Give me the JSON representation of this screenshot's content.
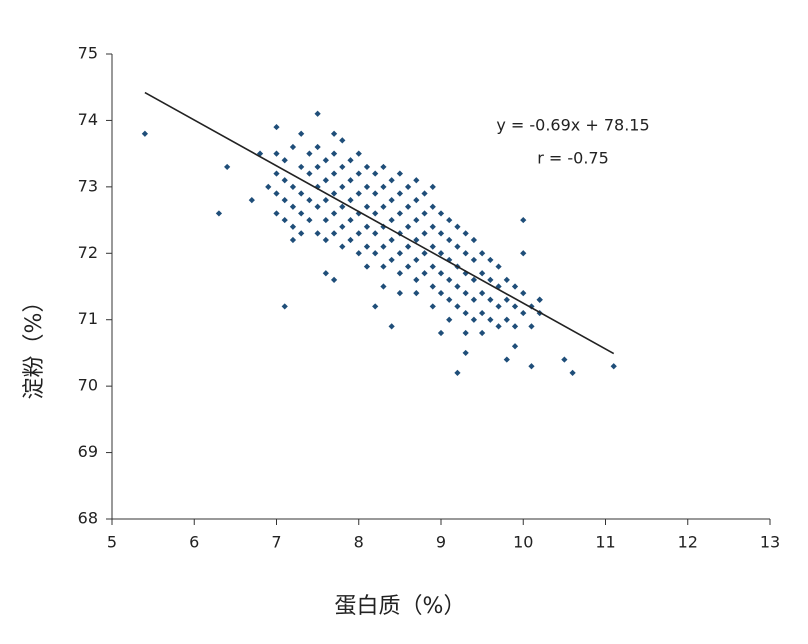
{
  "chart_data": {
    "type": "scatter",
    "x_label": "蛋白质（%）",
    "y_label": "淀粉（%）",
    "annotations": [
      "y = -0.69x + 78.15",
      "r = -0.75"
    ],
    "color": "#1f4e79",
    "line_color": "#222222",
    "xlim": [
      5,
      13
    ],
    "xticks": [
      5,
      6,
      7,
      8,
      9,
      10,
      11,
      12,
      13
    ],
    "ylim": [
      68,
      75
    ],
    "yticks": [
      68,
      69,
      70,
      71,
      72,
      73,
      74,
      75
    ],
    "grid": false,
    "trend_line": {
      "x": [
        5.4,
        11.1
      ],
      "y": [
        74.42,
        70.49
      ]
    },
    "x": [
      5.4,
      6.3,
      6.4,
      7.1,
      7.5,
      10.0,
      9.2,
      10.1,
      10.5,
      10.6,
      11.1,
      9.8,
      9.9,
      9.3,
      10.2,
      8.4,
      8.2,
      7.7,
      7.6,
      6.8,
      6.7,
      6.9,
      7.0,
      7.2,
      7.3,
      7.7,
      10.0,
      7.0,
      7.0,
      7.0,
      7.0,
      7.1,
      7.1,
      7.1,
      7.1,
      7.2,
      7.2,
      7.2,
      7.2,
      7.3,
      7.3,
      7.3,
      7.3,
      7.4,
      7.4,
      7.4,
      7.4,
      7.5,
      7.5,
      7.5,
      7.5,
      7.5,
      7.6,
      7.6,
      7.6,
      7.6,
      7.6,
      7.7,
      7.7,
      7.7,
      7.7,
      7.7,
      7.8,
      7.8,
      7.8,
      7.8,
      7.8,
      7.8,
      7.9,
      7.9,
      7.9,
      7.9,
      7.9,
      8.0,
      8.0,
      8.0,
      8.0,
      8.0,
      8.0,
      8.1,
      8.1,
      8.1,
      8.1,
      8.1,
      8.1,
      8.2,
      8.2,
      8.2,
      8.2,
      8.2,
      8.3,
      8.3,
      8.3,
      8.3,
      8.3,
      8.3,
      8.3,
      8.4,
      8.4,
      8.4,
      8.4,
      8.4,
      8.5,
      8.5,
      8.5,
      8.5,
      8.5,
      8.5,
      8.5,
      8.6,
      8.6,
      8.6,
      8.6,
      8.6,
      8.7,
      8.7,
      8.7,
      8.7,
      8.7,
      8.7,
      8.7,
      8.8,
      8.8,
      8.8,
      8.8,
      8.8,
      8.9,
      8.9,
      8.9,
      8.9,
      8.9,
      8.9,
      8.9,
      9.0,
      9.0,
      9.0,
      9.0,
      9.0,
      9.0,
      9.1,
      9.1,
      9.1,
      9.1,
      9.1,
      9.1,
      9.2,
      9.2,
      9.2,
      9.2,
      9.2,
      9.3,
      9.3,
      9.3,
      9.3,
      9.3,
      9.3,
      9.4,
      9.4,
      9.4,
      9.4,
      9.4,
      9.5,
      9.5,
      9.5,
      9.5,
      9.5,
      9.6,
      9.6,
      9.6,
      9.6,
      9.7,
      9.7,
      9.7,
      9.7,
      9.8,
      9.8,
      9.8,
      9.9,
      9.9,
      9.9,
      10.0,
      10.0,
      10.1,
      10.1,
      10.2,
      10.2
    ],
    "y": [
      73.8,
      72.6,
      73.3,
      71.2,
      74.1,
      72.5,
      70.2,
      70.3,
      70.4,
      70.2,
      70.3,
      70.4,
      70.6,
      70.5,
      71.3,
      70.9,
      71.2,
      71.6,
      71.7,
      73.5,
      72.8,
      73.0,
      73.9,
      72.2,
      73.8,
      73.8,
      72.0,
      73.5,
      73.2,
      72.9,
      72.6,
      73.4,
      73.1,
      72.8,
      72.5,
      73.6,
      73.0,
      72.7,
      72.4,
      73.3,
      72.9,
      72.6,
      72.3,
      73.5,
      73.2,
      72.8,
      72.5,
      73.6,
      73.3,
      73.0,
      72.7,
      72.3,
      73.4,
      73.1,
      72.8,
      72.5,
      72.2,
      73.5,
      73.2,
      72.9,
      72.6,
      72.3,
      73.7,
      73.3,
      73.0,
      72.7,
      72.4,
      72.1,
      73.4,
      73.1,
      72.8,
      72.5,
      72.2,
      73.5,
      73.2,
      72.9,
      72.6,
      72.3,
      72.0,
      73.3,
      73.0,
      72.7,
      72.4,
      72.1,
      71.8,
      73.2,
      72.9,
      72.6,
      72.3,
      72.0,
      73.3,
      73.0,
      72.7,
      72.4,
      72.1,
      71.8,
      71.5,
      73.1,
      72.8,
      72.5,
      72.2,
      71.9,
      73.2,
      72.9,
      72.6,
      72.3,
      72.0,
      71.7,
      71.4,
      73.0,
      72.7,
      72.4,
      72.1,
      71.8,
      73.1,
      72.8,
      72.5,
      72.2,
      71.9,
      71.6,
      71.4,
      72.9,
      72.6,
      72.3,
      72.0,
      71.7,
      73.0,
      72.7,
      72.4,
      72.1,
      71.8,
      71.5,
      71.2,
      72.6,
      72.3,
      72.0,
      71.7,
      71.4,
      70.8,
      72.5,
      72.2,
      71.9,
      71.6,
      71.3,
      71.0,
      72.4,
      72.1,
      71.8,
      71.5,
      71.2,
      72.3,
      72.0,
      71.7,
      71.4,
      71.1,
      70.8,
      72.2,
      71.9,
      71.6,
      71.3,
      71.0,
      72.0,
      71.7,
      71.4,
      71.1,
      70.8,
      71.9,
      71.6,
      71.3,
      71.0,
      71.8,
      71.5,
      71.2,
      70.9,
      71.6,
      71.3,
      71.0,
      71.5,
      71.2,
      70.9,
      71.4,
      71.1,
      71.2,
      70.9,
      71.3,
      71.1
    ]
  }
}
